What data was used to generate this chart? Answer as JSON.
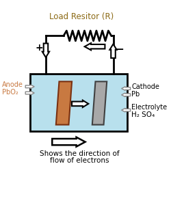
{
  "title": "Load Resitor (R)",
  "title_color": "#8B6914",
  "title_fontsize": 8.5,
  "bg_color": "#ffffff",
  "electrolyte_color": "#b8e0ed",
  "anode_color": "#c87941",
  "cathode_color": "#a8a8a8",
  "label_anode": "Anode",
  "label_pbo2": "PbO₂",
  "label_cathode": "Cathode",
  "label_pb": "Pb",
  "label_electrolyte": "Electrolyte",
  "label_electrolyte2": "H₂ SO₄",
  "label_plus": "+",
  "label_minus": "−",
  "label_bottom1": "Shows the direction of",
  "label_bottom2": "flow of electrons",
  "orange_label_color": "#c87941",
  "anode_label_color": "#c87941"
}
